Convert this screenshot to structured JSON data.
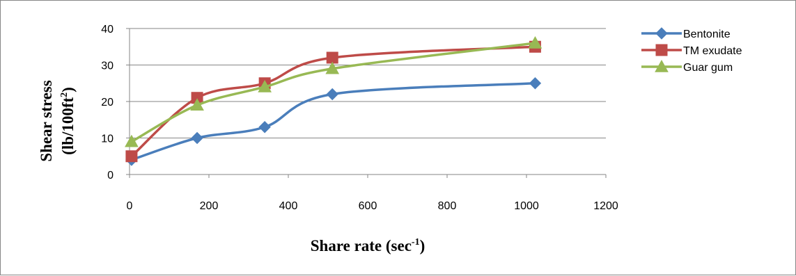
{
  "chart_data": {
    "type": "line",
    "smooth": true,
    "ylabel_line1": "Shear stress",
    "ylabel_line2": "(lb/100ft",
    "ylabel_line2_sup": "2",
    "ylabel_line2_end": ")",
    "xlabel": "Share rate (sec",
    "xlabel_sup": "-1",
    "xlabel_end": ")",
    "xlim": [
      0,
      1200
    ],
    "ylim": [
      0,
      40
    ],
    "xticks": [
      0,
      200,
      400,
      600,
      800,
      1000,
      1200
    ],
    "yticks": [
      0,
      10,
      20,
      30,
      40
    ],
    "grid": true,
    "legend_position": "right",
    "x": [
      5.11,
      170.3,
      340.6,
      510.9,
      1021.8
    ],
    "series": [
      {
        "name": "Bentonite",
        "color": "#4A7EBB",
        "marker": "diamond",
        "values": [
          4,
          10,
          13,
          22,
          25
        ]
      },
      {
        "name": "TM exudate",
        "color": "#BE4B48",
        "marker": "square",
        "values": [
          5,
          21,
          25,
          32,
          35
        ]
      },
      {
        "name": "Guar gum",
        "color": "#98B954",
        "marker": "triangle",
        "values": [
          9,
          19,
          24,
          29,
          36
        ]
      }
    ]
  }
}
